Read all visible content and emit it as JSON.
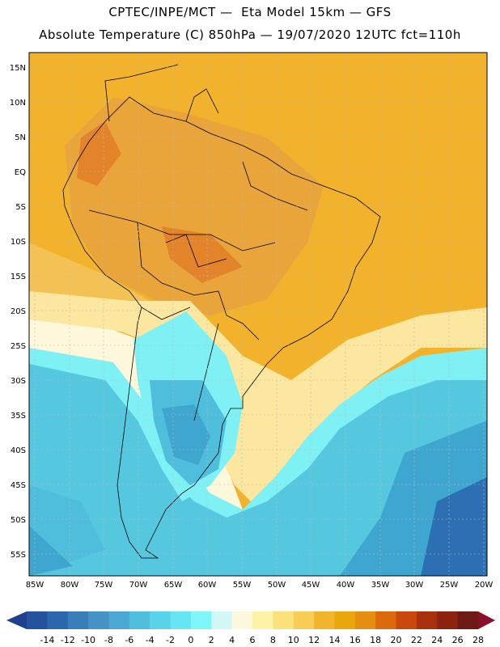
{
  "header": {
    "line1": "CPTEC/INPE/MCT —  Eta Model 15km — GFS",
    "line2": "Absolute Temperature (C) 850hPa — 19/07/2020 12UTC fct=110h"
  },
  "axes": {
    "lat_labels": [
      "15N",
      "10N",
      "5N",
      "EQ",
      "5S",
      "10S",
      "15S",
      "20S",
      "25S",
      "30S",
      "35S",
      "40S",
      "45S",
      "50S",
      "55S"
    ],
    "lon_labels": [
      "85W",
      "80W",
      "75W",
      "70W",
      "65W",
      "60W",
      "55W",
      "50W",
      "45W",
      "40W",
      "35W",
      "30W",
      "25W",
      "20W"
    ]
  },
  "colorbar": {
    "labels": [
      "-14",
      "-12",
      "-10",
      "-8",
      "-6",
      "-4",
      "-2",
      "0",
      "2",
      "4",
      "6",
      "8",
      "10",
      "12",
      "14",
      "16",
      "18",
      "20",
      "22",
      "24",
      "26",
      "28"
    ],
    "colors": [
      "#1f3f8f",
      "#24529f",
      "#2c67ad",
      "#3a7dbb",
      "#4593c6",
      "#4aa8d2",
      "#4fbedd",
      "#58d3ea",
      "#66e6f2",
      "#7ff6f7",
      "#d2f7f7",
      "#fdf8dc",
      "#fdf2a6",
      "#fbe17a",
      "#f7cd57",
      "#f0b52a",
      "#eba60c",
      "#e58f10",
      "#dc6a0c",
      "#c9480c",
      "#a8300c",
      "#8b230e",
      "#6e1a14",
      "#8b0f2a"
    ]
  },
  "map": {
    "palette": {
      "warm_orange": "#e9a43a",
      "hot_orange": "#e3842a",
      "yellow_orange": "#f2b22c",
      "light_yellow": "#fbe7a0",
      "cream": "#fdf7dc",
      "pale_cyan": "#d6f5f7",
      "cyan": "#7ff0f4",
      "mid_blue": "#55c8e0",
      "blue": "#3fa6cf",
      "deep_blue": "#2d6fb3"
    }
  }
}
